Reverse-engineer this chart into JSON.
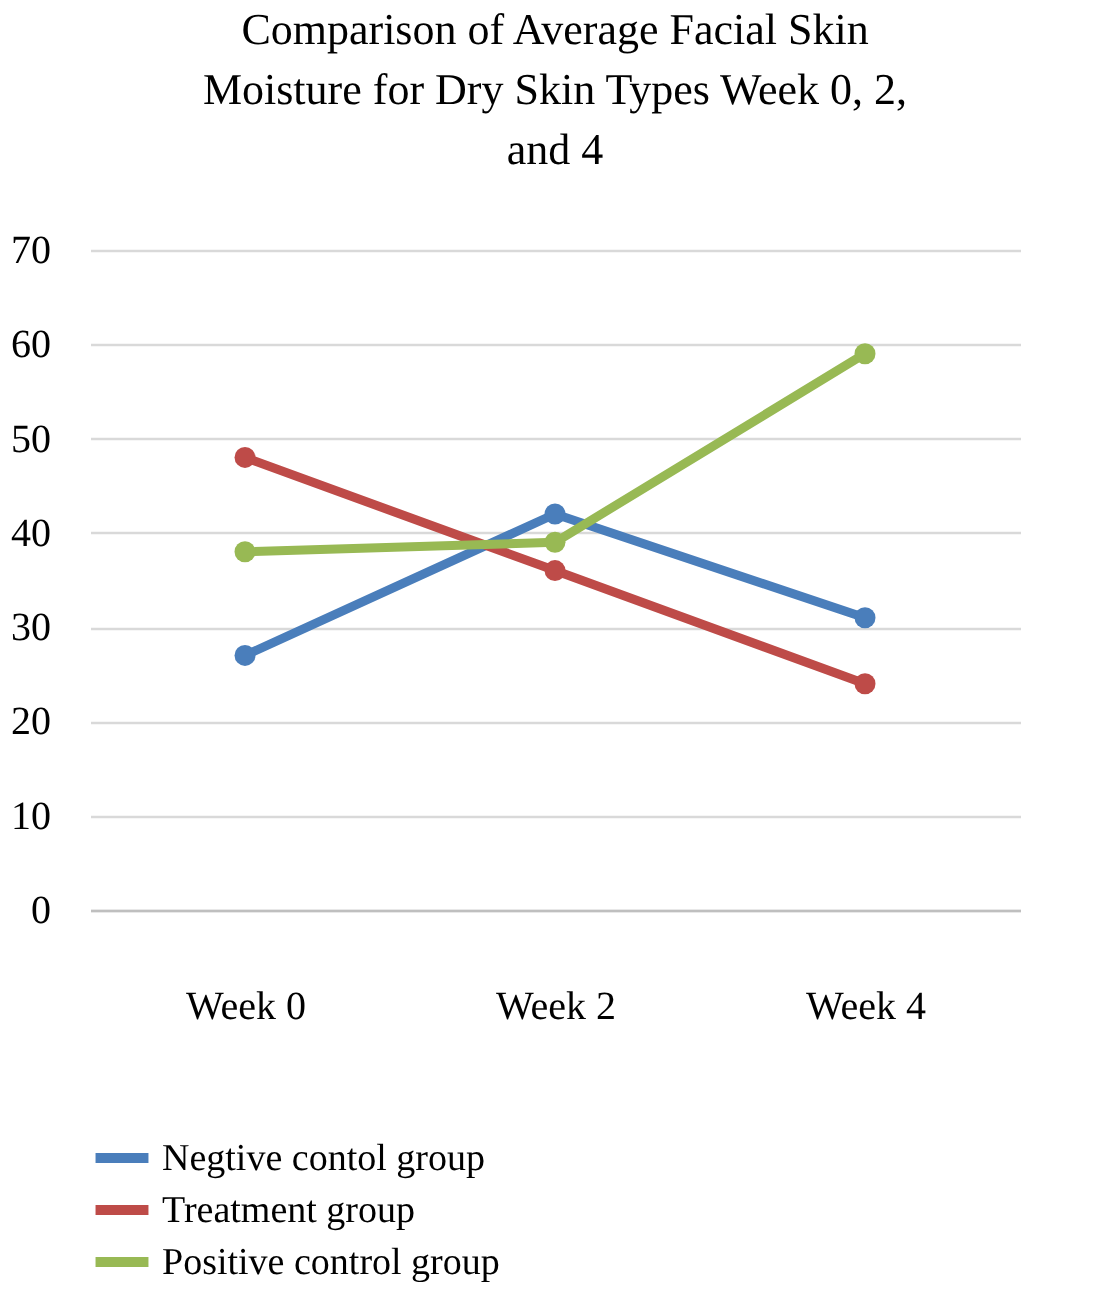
{
  "chart_data": {
    "type": "line",
    "title": "Comparison of Average Facial Skin Moisture for Dry Skin Types Week 0, 2, and 4",
    "categories": [
      "Week 0",
      "Week 2",
      "Week 4"
    ],
    "series": [
      {
        "name": "Negtive contol group",
        "color": "#4a7ebb",
        "values": [
          27,
          42,
          31
        ]
      },
      {
        "name": "Treatment group",
        "color": "#be4b48",
        "values": [
          48,
          36,
          24
        ]
      },
      {
        "name": "Positive control group",
        "color": "#98b954",
        "values": [
          38,
          39,
          59
        ]
      }
    ],
    "ylim": [
      0,
      70
    ],
    "yticks": [
      0,
      10,
      20,
      30,
      40,
      50,
      60,
      70
    ],
    "grid": "y",
    "legend": "bottom",
    "marker": "circle",
    "line_style": "solid"
  }
}
